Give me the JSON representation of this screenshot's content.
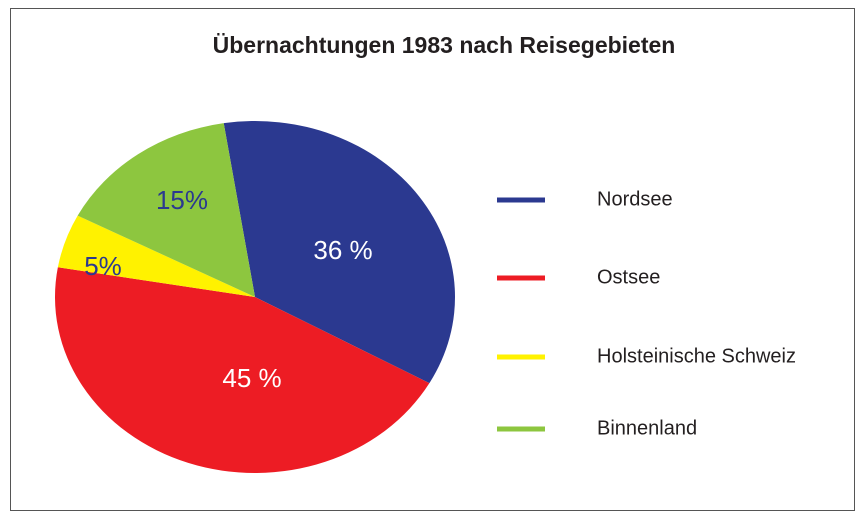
{
  "chart_data": {
    "type": "pie",
    "title": "Übernachtungen 1983 nach Reisegebieten",
    "categories": [
      "Nordsee",
      "Ostsee",
      "Holsteinische Schweiz",
      "Binnenland"
    ],
    "values": [
      36,
      45,
      5,
      15
    ],
    "value_labels": [
      "36 %",
      "45 %",
      "5%",
      "15%"
    ],
    "colors": [
      "#2b3990",
      "#ed1c24",
      "#fff200",
      "#8dc63f"
    ],
    "legend": "right"
  }
}
